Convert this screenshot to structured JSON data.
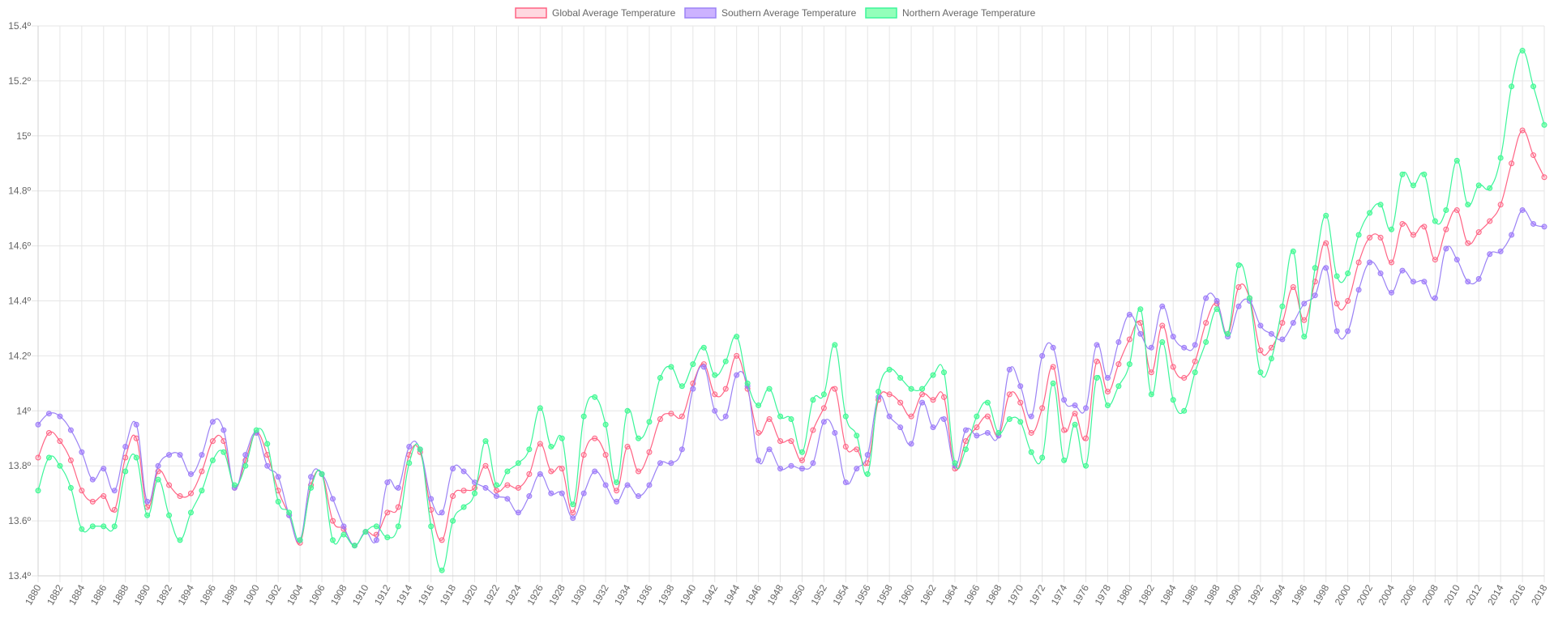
{
  "chart_data": {
    "type": "line",
    "y_tick_suffix": "º",
    "ylim": [
      13.4,
      15.4
    ],
    "y_ticks": [
      13.4,
      13.6,
      13.8,
      14,
      14.2,
      14.4,
      14.6,
      14.8,
      15,
      15.2,
      15.4
    ],
    "x_label_step": 2,
    "legend_position": "top-center",
    "grid": true,
    "x": [
      1880,
      1881,
      1882,
      1883,
      1884,
      1885,
      1886,
      1887,
      1888,
      1889,
      1890,
      1891,
      1892,
      1893,
      1894,
      1895,
      1896,
      1897,
      1898,
      1899,
      1900,
      1901,
      1902,
      1903,
      1904,
      1905,
      1906,
      1907,
      1908,
      1909,
      1910,
      1911,
      1912,
      1913,
      1914,
      1915,
      1916,
      1917,
      1918,
      1919,
      1920,
      1921,
      1922,
      1923,
      1924,
      1925,
      1926,
      1927,
      1928,
      1929,
      1930,
      1931,
      1932,
      1933,
      1934,
      1935,
      1936,
      1937,
      1938,
      1939,
      1940,
      1941,
      1942,
      1943,
      1944,
      1945,
      1946,
      1947,
      1948,
      1949,
      1950,
      1951,
      1952,
      1953,
      1954,
      1955,
      1956,
      1957,
      1958,
      1959,
      1960,
      1961,
      1962,
      1963,
      1964,
      1965,
      1966,
      1967,
      1968,
      1969,
      1970,
      1971,
      1972,
      1973,
      1974,
      1975,
      1976,
      1977,
      1978,
      1979,
      1980,
      1981,
      1982,
      1983,
      1984,
      1985,
      1986,
      1987,
      1988,
      1989,
      1990,
      1991,
      1992,
      1993,
      1994,
      1995,
      1996,
      1997,
      1998,
      1999,
      2000,
      2001,
      2002,
      2003,
      2004,
      2005,
      2006,
      2007,
      2008,
      2009,
      2010,
      2011,
      2012,
      2013,
      2014,
      2015,
      2016,
      2017,
      2018
    ],
    "series": [
      {
        "name": "Global Average Temperature",
        "color": "#ff6384",
        "fill": "rgba(255,99,132,0.25)",
        "values": [
          13.83,
          13.92,
          13.89,
          13.82,
          13.71,
          13.67,
          13.69,
          13.64,
          13.83,
          13.9,
          13.65,
          13.78,
          13.73,
          13.69,
          13.7,
          13.78,
          13.89,
          13.89,
          13.72,
          13.82,
          13.92,
          13.84,
          13.71,
          13.62,
          13.52,
          13.73,
          13.77,
          13.6,
          13.57,
          13.51,
          13.56,
          13.55,
          13.63,
          13.65,
          13.84,
          13.85,
          13.64,
          13.53,
          13.69,
          13.71,
          13.72,
          13.8,
          13.71,
          13.73,
          13.72,
          13.77,
          13.88,
          13.78,
          13.79,
          13.63,
          13.84,
          13.9,
          13.84,
          13.71,
          13.87,
          13.78,
          13.85,
          13.97,
          13.99,
          13.98,
          14.1,
          14.17,
          14.06,
          14.08,
          14.2,
          14.08,
          13.92,
          13.97,
          13.89,
          13.89,
          13.82,
          13.93,
          14.01,
          14.08,
          13.87,
          13.86,
          13.81,
          14.04,
          14.06,
          14.03,
          13.98,
          14.06,
          14.04,
          14.05,
          13.79,
          13.89,
          13.94,
          13.98,
          13.91,
          14.06,
          14.03,
          13.92,
          14.01,
          14.16,
          13.93,
          13.99,
          13.9,
          14.18,
          14.07,
          14.17,
          14.26,
          14.32,
          14.14,
          14.31,
          14.16,
          14.12,
          14.18,
          14.32,
          14.39,
          14.28,
          14.45,
          14.41,
          14.22,
          14.23,
          14.32,
          14.45,
          14.33,
          14.47,
          14.61,
          14.39,
          14.4,
          14.54,
          14.63,
          14.63,
          14.54,
          14.68,
          14.64,
          14.67,
          14.55,
          14.66,
          14.73,
          14.61,
          14.65,
          14.69,
          14.75,
          14.9,
          15.02,
          14.93,
          14.85
        ]
      },
      {
        "name": "Southern Average Temperature",
        "color": "#9b82f5",
        "fill": "rgba(153,102,255,0.5)",
        "values": [
          13.95,
          13.99,
          13.98,
          13.93,
          13.85,
          13.75,
          13.79,
          13.71,
          13.87,
          13.95,
          13.67,
          13.8,
          13.84,
          13.84,
          13.77,
          13.84,
          13.96,
          13.93,
          13.72,
          13.84,
          13.92,
          13.8,
          13.76,
          13.62,
          13.53,
          13.76,
          13.77,
          13.68,
          13.58,
          13.51,
          13.56,
          13.53,
          13.74,
          13.72,
          13.87,
          13.86,
          13.68,
          13.63,
          13.79,
          13.78,
          13.74,
          13.72,
          13.69,
          13.68,
          13.63,
          13.69,
          13.77,
          13.7,
          13.7,
          13.61,
          13.7,
          13.78,
          13.73,
          13.67,
          13.73,
          13.69,
          13.73,
          13.81,
          13.81,
          13.86,
          14.08,
          14.16,
          14.0,
          13.98,
          14.13,
          14.09,
          13.82,
          13.86,
          13.79,
          13.8,
          13.79,
          13.81,
          13.96,
          13.92,
          13.74,
          13.79,
          13.84,
          14.05,
          13.98,
          13.94,
          13.88,
          14.03,
          13.94,
          13.97,
          13.8,
          13.93,
          13.91,
          13.92,
          13.91,
          14.15,
          14.09,
          13.98,
          14.2,
          14.23,
          14.04,
          14.02,
          14.01,
          14.24,
          14.12,
          14.25,
          14.35,
          14.28,
          14.23,
          14.38,
          14.27,
          14.23,
          14.24,
          14.41,
          14.4,
          14.27,
          14.38,
          14.4,
          14.31,
          14.28,
          14.26,
          14.32,
          14.39,
          14.42,
          14.52,
          14.29,
          14.29,
          14.44,
          14.54,
          14.5,
          14.43,
          14.51,
          14.47,
          14.47,
          14.41,
          14.59,
          14.55,
          14.47,
          14.48,
          14.57,
          14.58,
          14.64,
          14.73,
          14.68,
          14.67
        ]
      },
      {
        "name": "Northern Average Temperature",
        "color": "#3cf59a",
        "fill": "rgba(75,255,140,0.6)",
        "values": [
          13.71,
          13.83,
          13.8,
          13.72,
          13.57,
          13.58,
          13.58,
          13.58,
          13.78,
          13.83,
          13.62,
          13.75,
          13.62,
          13.53,
          13.63,
          13.71,
          13.82,
          13.85,
          13.73,
          13.8,
          13.93,
          13.88,
          13.67,
          13.63,
          13.53,
          13.72,
          13.77,
          13.53,
          13.55,
          13.51,
          13.56,
          13.58,
          13.54,
          13.58,
          13.81,
          13.86,
          13.58,
          13.42,
          13.6,
          13.65,
          13.7,
          13.89,
          13.73,
          13.78,
          13.81,
          13.86,
          14.01,
          13.87,
          13.9,
          13.66,
          13.98,
          14.05,
          13.95,
          13.74,
          14.0,
          13.9,
          13.96,
          14.12,
          14.16,
          14.09,
          14.17,
          14.23,
          14.13,
          14.18,
          14.27,
          14.1,
          14.02,
          14.08,
          13.98,
          13.97,
          13.85,
          14.04,
          14.06,
          14.24,
          13.98,
          13.91,
          13.77,
          14.07,
          14.15,
          14.12,
          14.08,
          14.08,
          14.13,
          14.14,
          13.81,
          13.86,
          13.98,
          14.03,
          13.92,
          13.97,
          13.96,
          13.85,
          13.83,
          14.1,
          13.82,
          13.95,
          13.8,
          14.12,
          14.02,
          14.09,
          14.17,
          14.37,
          14.06,
          14.25,
          14.04,
          14.0,
          14.14,
          14.25,
          14.37,
          14.28,
          14.53,
          14.41,
          14.14,
          14.19,
          14.38,
          14.58,
          14.27,
          14.52,
          14.71,
          14.49,
          14.5,
          14.64,
          14.72,
          14.75,
          14.66,
          14.86,
          14.82,
          14.86,
          14.69,
          14.73,
          14.91,
          14.75,
          14.82,
          14.81,
          14.92,
          15.18,
          15.31,
          15.18,
          15.04
        ]
      }
    ]
  }
}
